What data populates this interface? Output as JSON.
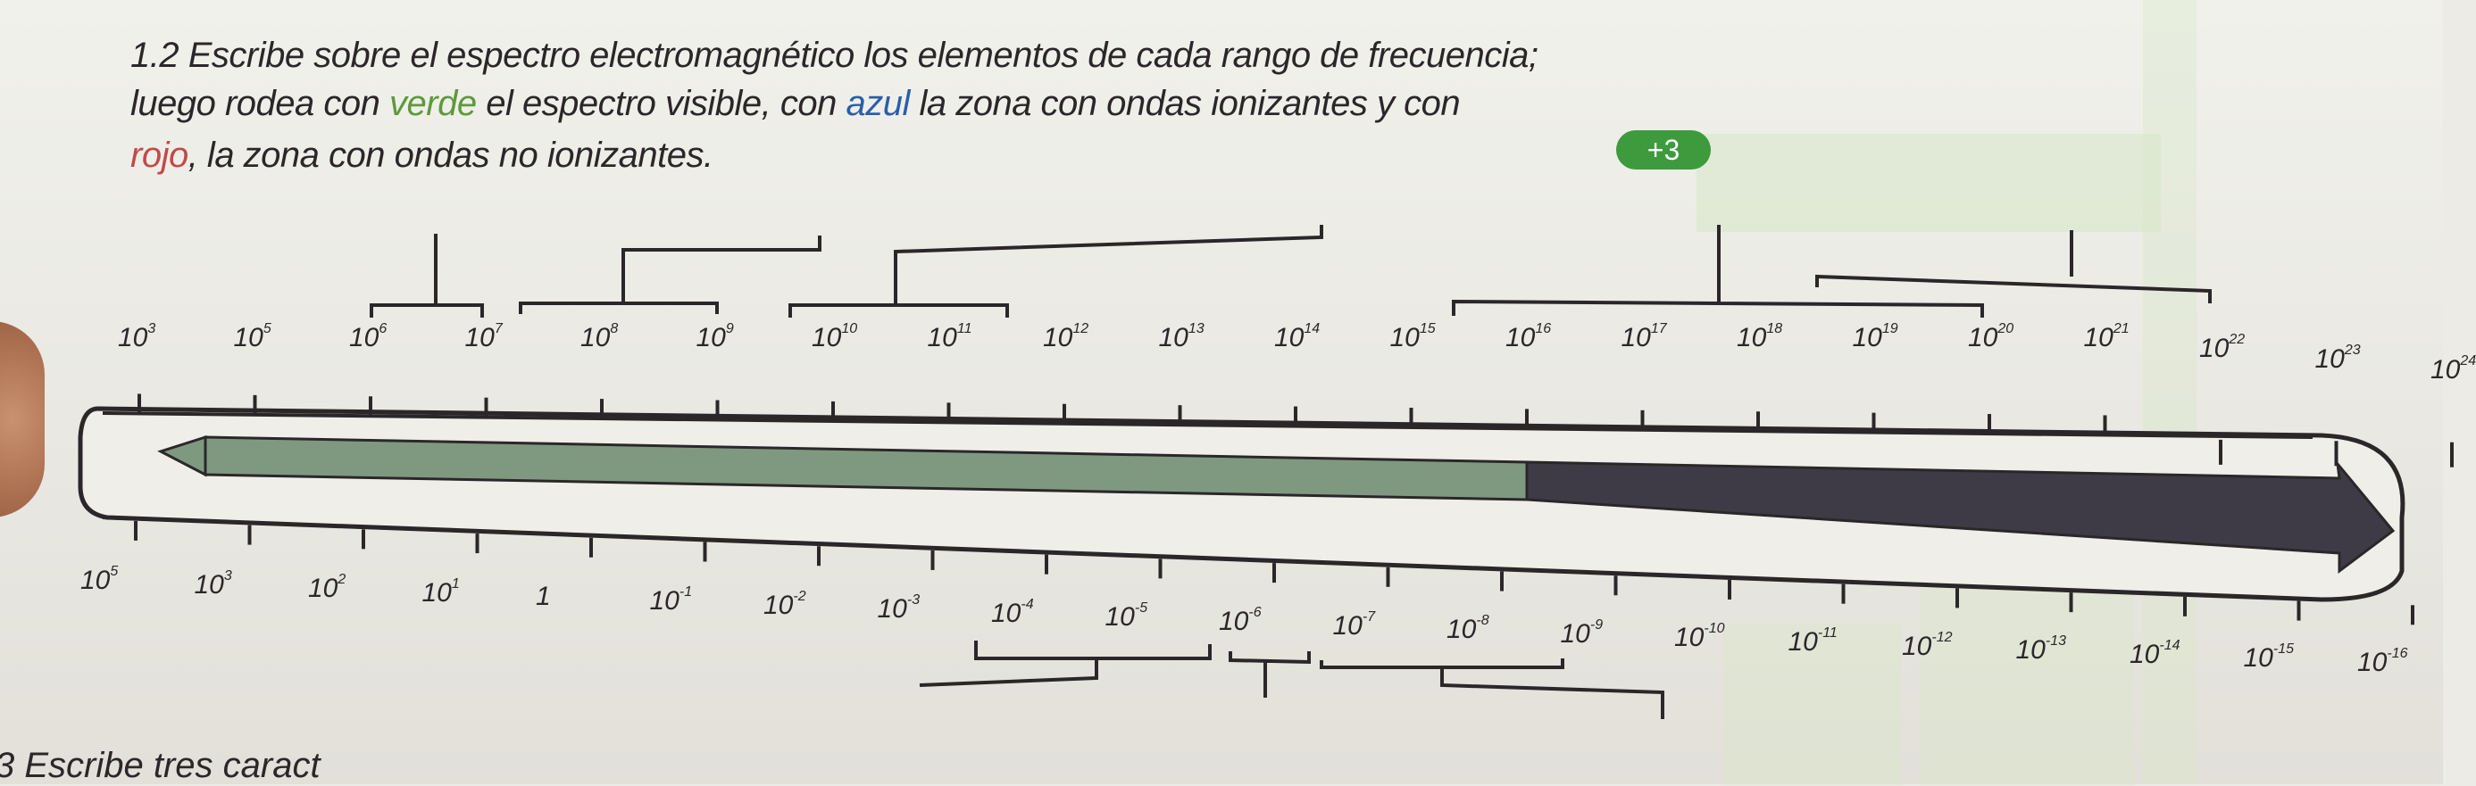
{
  "instructions": {
    "number": "1.2",
    "line1": "Escribe sobre el espectro electromagnético los elementos de cada rango de frecuencia;",
    "line2_a": "luego rodea con ",
    "line2_green": "verde",
    "line2_b": " el espectro visible, con ",
    "line2_blue": "azul",
    "line2_c": " la zona con ondas ionizantes y con",
    "line3_red": "rojo",
    "line3_rest": ", la zona con ondas no ionizantes.",
    "badge": "+3"
  },
  "frequency_scale": {
    "base": "10",
    "exponents": [
      "3",
      "5",
      "6",
      "7",
      "8",
      "9",
      "10",
      "11",
      "12",
      "13",
      "14",
      "15",
      "16",
      "17",
      "18",
      "19",
      "20",
      "21",
      "22",
      "23",
      "24"
    ]
  },
  "wavelength_scale": {
    "labels": [
      {
        "base": "10",
        "exp": "5"
      },
      {
        "base": "10",
        "exp": "3"
      },
      {
        "base": "10",
        "exp": "2"
      },
      {
        "base": "10",
        "exp": "1"
      },
      {
        "base": "1",
        "exp": ""
      },
      {
        "base": "10",
        "exp": "-1"
      },
      {
        "base": "10",
        "exp": "-2"
      },
      {
        "base": "10",
        "exp": "-3"
      },
      {
        "base": "10",
        "exp": "-4"
      },
      {
        "base": "10",
        "exp": "-5"
      },
      {
        "base": "10",
        "exp": "-6"
      },
      {
        "base": "10",
        "exp": "-7"
      },
      {
        "base": "10",
        "exp": "-8"
      },
      {
        "base": "10",
        "exp": "-9"
      },
      {
        "base": "10",
        "exp": "-10"
      },
      {
        "base": "10",
        "exp": "-11"
      },
      {
        "base": "10",
        "exp": "-12"
      },
      {
        "base": "10",
        "exp": "-13"
      },
      {
        "base": "10",
        "exp": "-14"
      },
      {
        "base": "10",
        "exp": "-15"
      },
      {
        "base": "10",
        "exp": "-16"
      }
    ]
  },
  "colors": {
    "arrow_green": "#7f9980",
    "arrow_dark": "#3f3b46",
    "ink": "#2b2729",
    "badge_green": "#3d9a3d"
  },
  "footer": {
    "question": "3 Escribe tres caract"
  }
}
